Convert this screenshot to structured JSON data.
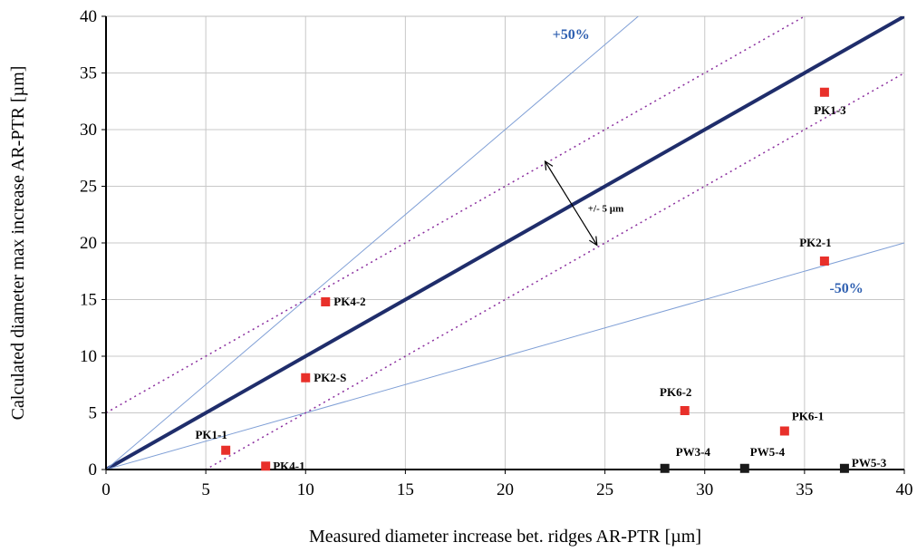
{
  "chart_data": {
    "type": "scatter",
    "xlabel": "Measured diameter increase bet. ridges AR-PTR [µm]",
    "ylabel": "Calculated diameter max increase AR-PTR [µm]",
    "xlim": [
      0,
      40
    ],
    "ylim": [
      0,
      40
    ],
    "x_ticks": [
      "0",
      "5",
      "10",
      "15",
      "20",
      "25",
      "30",
      "35",
      "40"
    ],
    "y_ticks": [
      "0",
      "5",
      "10",
      "15",
      "20",
      "25",
      "30",
      "35",
      "40"
    ],
    "grid": true,
    "reference_lines": [
      {
        "kind": "identity",
        "slope": 1,
        "intercept": 0,
        "color": "#1f2d6b"
      },
      {
        "kind": "plus50",
        "slope": 1.5,
        "intercept": 0,
        "color": "#7f9fd6",
        "label": "+50%"
      },
      {
        "kind": "minus50",
        "slope": 0.5,
        "intercept": 0,
        "color": "#7f9fd6",
        "label": "-50%"
      },
      {
        "kind": "plus5",
        "slope": 1,
        "intercept": 5,
        "color": "#8a2d9e"
      },
      {
        "kind": "minus5",
        "slope": 1,
        "intercept": -5,
        "color": "#8a2d9e"
      }
    ],
    "band_label_color": "#2e5fb0",
    "annotation": {
      "text": "+/- 5 µm",
      "arrow_from": [
        22,
        27.2
      ],
      "arrow_to": [
        24.6,
        19.8
      ]
    },
    "series": [
      {
        "color": "#e8302a",
        "points": [
          {
            "x": 6,
            "y": 1.7,
            "label": "PK1-1"
          },
          {
            "x": 8,
            "y": 0.3,
            "label": "PK4-1"
          },
          {
            "x": 10,
            "y": 8.1,
            "label": "PK2-S"
          },
          {
            "x": 11,
            "y": 14.8,
            "label": "PK4-2"
          },
          {
            "x": 29,
            "y": 5.2,
            "label": "PK6-2"
          },
          {
            "x": 34,
            "y": 3.4,
            "label": "PK6-1"
          },
          {
            "x": 36,
            "y": 18.4,
            "label": "PK2-1"
          },
          {
            "x": 36,
            "y": 33.3,
            "label": "PK1-3"
          }
        ]
      },
      {
        "color": "#1a1a1a",
        "points": [
          {
            "x": 28,
            "y": 0.1,
            "label": "PW3-4"
          },
          {
            "x": 32,
            "y": 0.1,
            "label": "PW5-4"
          },
          {
            "x": 37,
            "y": 0.1,
            "label": "PW5-3"
          }
        ]
      }
    ]
  }
}
